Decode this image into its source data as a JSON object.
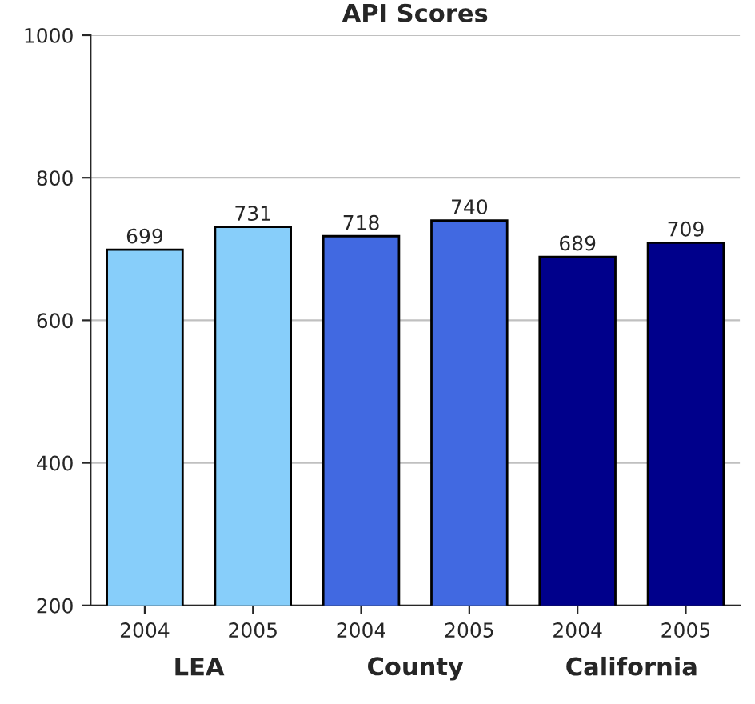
{
  "chart_data": {
    "type": "bar",
    "title": "API Scores",
    "categories": [
      "2004",
      "2005",
      "2004",
      "2005",
      "2004",
      "2005"
    ],
    "values": [
      699,
      731,
      718,
      740,
      689,
      709
    ],
    "colors": [
      "#87cefa",
      "#87cefa",
      "#4169e1",
      "#4169e1",
      "#00008b",
      "#00008b"
    ],
    "annotations": [
      "LEA",
      "County",
      "California"
    ],
    "ylim": [
      200,
      1000
    ],
    "yticks": [
      200,
      400,
      600,
      800,
      1000
    ],
    "grid": "y",
    "data_labels": true
  }
}
